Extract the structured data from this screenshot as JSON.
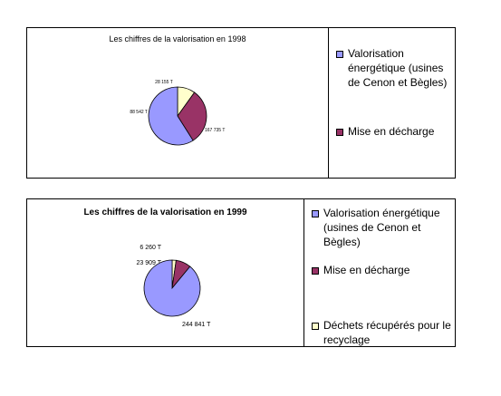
{
  "chart_data": [
    {
      "type": "pie",
      "title": "Les chiffres de la valorisation en 1998",
      "slices": [
        {
          "label": "Valorisation énergétique (usines de Cenon et Bègles)",
          "value": 167735,
          "value_label": "167 735 T",
          "color": "#9999ff"
        },
        {
          "label": "Mise en décharge",
          "value": 88542,
          "value_label": "88 542 T",
          "color": "#993366"
        },
        {
          "label": "",
          "value": 28155,
          "value_label": "28 155 T",
          "color": "#ffffcc"
        }
      ],
      "legend": [
        "Valorisation énergétique (usines de Cenon et Bègles)",
        "Mise en décharge"
      ],
      "legend_position": "right"
    },
    {
      "type": "pie",
      "title": "Les chiffres de la valorisation en 1999",
      "slices": [
        {
          "label": "Valorisation énergétique (usines de Cenon et Bègles)",
          "value": 244841,
          "value_label": "244 841 T",
          "color": "#9999ff"
        },
        {
          "label": "Mise en décharge",
          "value": 23909,
          "value_label": "23 909 T",
          "color": "#993366"
        },
        {
          "label": "Déchets récupérés pour le recyclage",
          "value": 6260,
          "value_label": "6 260 T",
          "color": "#ffffcc"
        }
      ],
      "legend": [
        "Valorisation énergétique (usines de Cenon et Bègles)",
        "Mise en décharge",
        "Déchets récupérés pour le recyclage"
      ],
      "legend_position": "right"
    }
  ],
  "legend_text": {
    "p1": [
      "Valorisation énergétique (usines de Cenon et Bègles)",
      "Mise en décharge"
    ],
    "p2": [
      "Valorisation énergétique (usines de Cenon et Bègles)",
      "Mise en décharge",
      "Déchets récupérés pour le recyclage"
    ]
  }
}
